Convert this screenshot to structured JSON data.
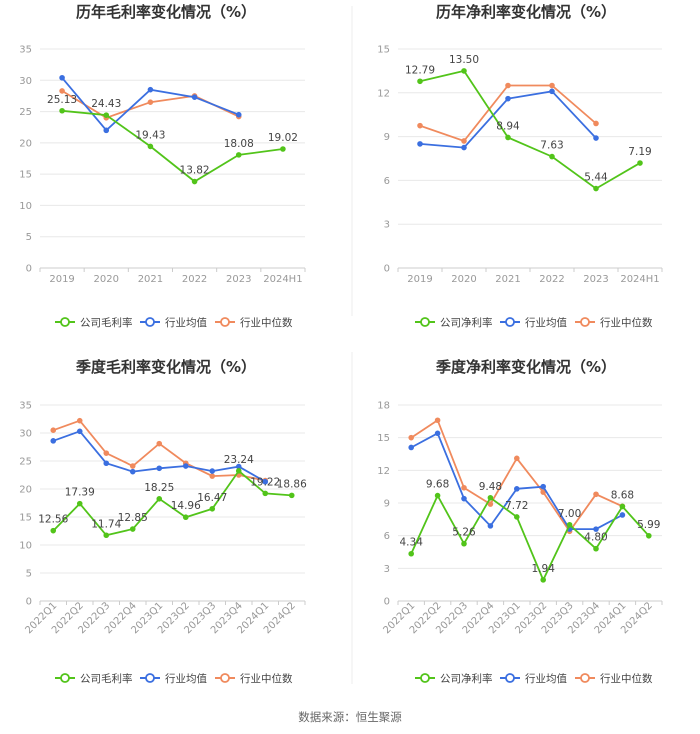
{
  "source_note": "数据来源：恒生聚源",
  "legend_labels": {
    "avg": "行业均值",
    "median": "行业中位数"
  },
  "colors": {
    "company": "#52c41a",
    "avg": "#3b6fe0",
    "median": "#f08a5d",
    "grid": "#e8e8e8",
    "axis": "#cccccc"
  },
  "chart_data": [
    {
      "type": "line",
      "title": "历年毛利率变化情况（%）",
      "categories": [
        "2019",
        "2020",
        "2021",
        "2022",
        "2023",
        "2024H1"
      ],
      "ylim": [
        0,
        35
      ],
      "yticks": [
        0,
        5,
        10,
        15,
        20,
        25,
        30,
        35
      ],
      "grid": true,
      "legend": "bottom",
      "series": [
        {
          "name": "公司毛利率",
          "key": "company",
          "values": [
            25.13,
            24.43,
            19.43,
            13.82,
            18.08,
            19.02
          ],
          "labels": [
            "25.13",
            "24.43",
            "19.43",
            "13.82",
            "18.08",
            "19.02"
          ]
        },
        {
          "name": "行业均值",
          "key": "avg",
          "values": [
            30.4,
            22.0,
            28.5,
            27.3,
            24.5,
            null
          ]
        },
        {
          "name": "行业中位数",
          "key": "median",
          "values": [
            28.3,
            24.0,
            26.5,
            27.5,
            24.2,
            null
          ]
        }
      ]
    },
    {
      "type": "line",
      "title": "历年净利率变化情况（%）",
      "categories": [
        "2019",
        "2020",
        "2021",
        "2022",
        "2023",
        "2024H1"
      ],
      "ylim": [
        0,
        15
      ],
      "yticks": [
        0,
        3,
        6,
        9,
        12,
        15
      ],
      "grid": true,
      "legend": "bottom",
      "series": [
        {
          "name": "公司净利率",
          "key": "company",
          "values": [
            12.79,
            13.5,
            8.94,
            7.63,
            5.44,
            7.19
          ],
          "labels": [
            "12.79",
            "13.50",
            "8.94",
            "7.63",
            "5.44",
            "7.19"
          ]
        },
        {
          "name": "行业均值",
          "key": "avg",
          "values": [
            8.5,
            8.25,
            11.6,
            12.1,
            8.9,
            null
          ]
        },
        {
          "name": "行业中位数",
          "key": "median",
          "values": [
            9.75,
            8.7,
            12.5,
            12.5,
            9.9,
            null
          ]
        }
      ]
    },
    {
      "type": "line",
      "title": "季度毛利率变化情况（%）",
      "categories": [
        "2022Q1",
        "2022Q2",
        "2022Q3",
        "2022Q4",
        "2023Q1",
        "2023Q2",
        "2023Q3",
        "2023Q4",
        "2024Q1",
        "2024Q2"
      ],
      "ylim": [
        0,
        35
      ],
      "yticks": [
        0,
        5,
        10,
        15,
        20,
        25,
        30,
        35
      ],
      "grid": true,
      "legend": "bottom",
      "series": [
        {
          "name": "公司毛利率",
          "key": "company",
          "values": [
            12.56,
            17.39,
            11.74,
            12.85,
            18.25,
            14.96,
            16.47,
            23.24,
            19.22,
            18.86
          ],
          "labels": [
            "12.56",
            "17.39",
            "11.74",
            "12.85",
            "18.25",
            "14.96",
            "16.47",
            "23.24",
            "19.22",
            "18.86"
          ]
        },
        {
          "name": "行业均值",
          "key": "avg",
          "values": [
            28.6,
            30.3,
            24.6,
            23.1,
            23.7,
            24.1,
            23.2,
            24.0,
            21.3,
            null
          ]
        },
        {
          "name": "行业中位数",
          "key": "median",
          "values": [
            30.5,
            32.2,
            26.4,
            24.1,
            28.1,
            24.6,
            22.3,
            22.5,
            21.5,
            null
          ]
        }
      ]
    },
    {
      "type": "line",
      "title": "季度净利率变化情况（%）",
      "categories": [
        "2022Q1",
        "2022Q2",
        "2022Q3",
        "2022Q4",
        "2023Q1",
        "2023Q2",
        "2023Q3",
        "2023Q4",
        "2024Q1",
        "2024Q2"
      ],
      "ylim": [
        0,
        18
      ],
      "yticks": [
        0,
        3,
        6,
        9,
        12,
        15,
        18
      ],
      "grid": true,
      "legend": "bottom",
      "series": [
        {
          "name": "公司净利率",
          "key": "company",
          "values": [
            4.34,
            9.68,
            5.26,
            9.48,
            7.72,
            1.94,
            7.0,
            4.8,
            8.68,
            5.99
          ],
          "labels": [
            "4.34",
            "9.68",
            "5.26",
            "9.48",
            "7.72",
            "1.94",
            "7.00",
            "4.80",
            "8.68",
            "5.99"
          ]
        },
        {
          "name": "行业均值",
          "key": "avg",
          "values": [
            14.1,
            15.4,
            9.4,
            6.9,
            10.3,
            10.5,
            6.6,
            6.6,
            7.9,
            null
          ]
        },
        {
          "name": "行业中位数",
          "key": "median",
          "values": [
            15.0,
            16.6,
            10.4,
            8.9,
            13.1,
            10.0,
            6.4,
            9.8,
            8.7,
            null
          ]
        }
      ]
    }
  ]
}
